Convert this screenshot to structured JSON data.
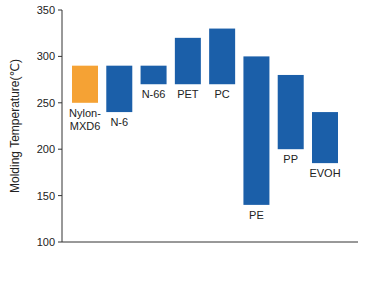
{
  "chart_data": {
    "type": "range_bar",
    "y_label": "Molding Temperature(℃)",
    "categories": [
      "Nylon-MXD6",
      "N-6",
      "N-66",
      "PET",
      "PC",
      "PE",
      "PP",
      "EVOH"
    ],
    "values": [
      [
        250,
        290
      ],
      [
        240,
        290
      ],
      [
        270,
        290
      ],
      [
        270,
        320
      ],
      [
        270,
        330
      ],
      [
        140,
        300
      ],
      [
        200,
        280
      ],
      [
        185,
        240
      ]
    ],
    "colors": [
      "#f5a234",
      "#1b5fa9",
      "#1b5fa9",
      "#1b5fa9",
      "#1b5fa9",
      "#1b5fa9",
      "#1b5fa9",
      "#1b5fa9"
    ],
    "ylim": [
      100,
      350
    ],
    "yticks": [
      100,
      150,
      200,
      250,
      300,
      350
    ],
    "grid": false
  }
}
